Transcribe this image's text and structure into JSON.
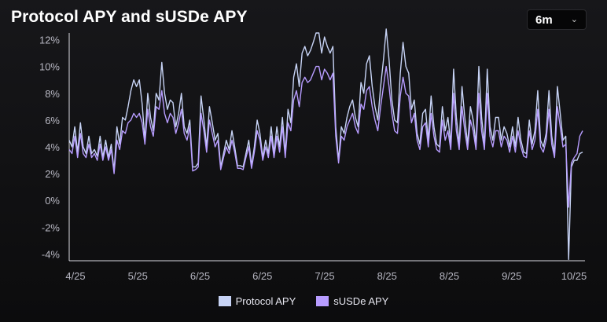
{
  "header": {
    "title": "Protocol APY and sUSDe APY",
    "range_value": "6m"
  },
  "legend": [
    {
      "label": "Protocol APY",
      "color": "#c7d3f5"
    },
    {
      "label": "sUSDe APY",
      "color": "#b79cff"
    }
  ],
  "chart_data": {
    "type": "line",
    "title": "Protocol APY and sUSDe APY",
    "xlabel": "",
    "ylabel": "",
    "x_ticks": [
      "4/25",
      "5/25",
      "6/25",
      "6/25",
      "7/25",
      "8/25",
      "8/25",
      "9/25",
      "10/25"
    ],
    "y_ticks": [
      "12%",
      "10%",
      "8%",
      "6%",
      "4%",
      "2%",
      "0%",
      "-2%",
      "-4%"
    ],
    "y_tick_values": [
      12,
      10,
      8,
      6,
      4,
      2,
      0,
      -2,
      -4
    ],
    "ylim": [
      -4.5,
      12.5
    ],
    "grid": false,
    "legend_position": "bottom-center",
    "series": [
      {
        "name": "Protocol APY",
        "color": "#c7d3f5",
        "values": [
          4.5,
          4.0,
          5.5,
          3.6,
          5.8,
          4.0,
          3.5,
          4.8,
          3.5,
          3.8,
          3.3,
          4.8,
          3.2,
          4.5,
          3.2,
          4.2,
          2.2,
          5.5,
          4.2,
          6.2,
          6.0,
          7.0,
          8.2,
          9.0,
          8.5,
          9.0,
          7.2,
          4.5,
          8.0,
          6.2,
          5.2,
          8.0,
          7.5,
          10.3,
          8.0,
          6.8,
          7.5,
          7.3,
          5.5,
          6.5,
          8.0,
          5.5,
          5.0,
          6.0,
          2.5,
          2.5,
          2.8,
          7.8,
          6.0,
          4.0,
          7.0,
          5.8,
          4.5,
          5.0,
          2.5,
          3.5,
          4.5,
          3.8,
          5.2,
          4.0,
          2.6,
          2.6,
          2.5,
          3.5,
          4.5,
          2.6,
          4.0,
          6.0,
          5.0,
          3.2,
          4.5,
          3.5,
          5.5,
          3.5,
          5.5,
          4.0,
          6.2,
          3.5,
          6.8,
          5.8,
          9.2,
          10.2,
          8.5,
          11.0,
          11.5,
          10.8,
          11.2,
          11.8,
          12.5,
          12.5,
          11.0,
          12.2,
          11.5,
          11.0,
          11.5,
          5.5,
          3.0,
          5.5,
          5.0,
          6.2,
          7.0,
          7.5,
          6.2,
          5.5,
          8.8,
          8.0,
          10.2,
          10.8,
          8.5,
          7.0,
          6.0,
          8.5,
          10.5,
          12.8,
          10.5,
          7.5,
          6.0,
          5.8,
          9.5,
          11.8,
          10.0,
          9.5,
          6.8,
          7.5,
          5.0,
          4.2,
          6.5,
          6.8,
          4.5,
          7.8,
          5.5,
          4.2,
          4.0,
          7.0,
          5.2,
          6.2,
          4.2,
          9.8,
          6.2,
          4.2,
          8.5,
          6.2,
          4.2,
          7.0,
          6.0,
          4.2,
          10.0,
          6.2,
          4.2,
          9.8,
          5.5,
          4.5,
          6.2,
          6.2,
          4.5,
          5.5,
          5.0,
          4.0,
          5.5,
          4.0,
          6.2,
          4.5,
          3.6,
          3.5,
          6.0,
          4.2,
          5.2,
          8.2,
          4.5,
          4.0,
          5.0,
          8.2,
          4.8,
          3.5,
          8.5,
          6.5,
          4.5,
          4.8,
          -4.4,
          2.5,
          3.0,
          3.0,
          3.5,
          3.6
        ]
      },
      {
        "name": "sUSDe APY",
        "color": "#b79cff",
        "values": [
          3.8,
          3.5,
          4.8,
          3.2,
          5.0,
          3.5,
          3.2,
          4.2,
          3.2,
          3.5,
          3.0,
          4.2,
          3.0,
          4.0,
          3.0,
          3.8,
          2.0,
          4.5,
          3.8,
          5.2,
          5.0,
          5.8,
          6.0,
          6.5,
          6.2,
          6.5,
          5.8,
          4.2,
          6.8,
          5.5,
          4.8,
          7.0,
          6.8,
          8.2,
          6.5,
          5.8,
          6.5,
          6.2,
          5.0,
          5.8,
          6.8,
          5.0,
          4.5,
          5.5,
          2.2,
          2.3,
          2.5,
          6.5,
          5.2,
          3.6,
          6.0,
          5.0,
          4.0,
          4.5,
          2.3,
          3.2,
          4.0,
          3.5,
          4.5,
          3.6,
          2.4,
          2.4,
          2.3,
          3.2,
          4.0,
          2.4,
          3.6,
          5.2,
          4.5,
          3.0,
          4.0,
          3.2,
          4.8,
          3.2,
          4.8,
          3.6,
          5.5,
          3.2,
          5.8,
          5.2,
          7.5,
          8.2,
          7.0,
          8.8,
          9.2,
          8.8,
          9.0,
          9.5,
          10.0,
          10.0,
          9.0,
          9.8,
          9.5,
          9.0,
          9.5,
          4.8,
          2.8,
          4.8,
          4.5,
          5.5,
          6.0,
          6.5,
          5.5,
          5.0,
          7.2,
          6.8,
          8.2,
          8.5,
          7.0,
          6.0,
          5.2,
          7.0,
          8.5,
          10.0,
          8.5,
          6.5,
          5.2,
          5.0,
          7.8,
          9.2,
          8.0,
          7.8,
          5.8,
          6.5,
          4.5,
          3.8,
          5.5,
          5.8,
          4.0,
          6.5,
          4.8,
          3.8,
          3.6,
          6.0,
          4.5,
          5.2,
          3.8,
          8.0,
          5.2,
          3.8,
          7.0,
          5.2,
          3.8,
          6.0,
          5.2,
          3.8,
          8.0,
          5.2,
          3.8,
          8.0,
          4.8,
          4.0,
          5.2,
          5.2,
          4.0,
          4.8,
          4.5,
          3.6,
          4.8,
          3.6,
          5.2,
          4.0,
          3.3,
          3.2,
          5.2,
          3.8,
          4.5,
          6.8,
          4.0,
          3.6,
          4.5,
          6.8,
          4.2,
          3.2,
          7.0,
          5.5,
          4.0,
          4.2,
          -0.5,
          2.8,
          3.2,
          3.5,
          4.8,
          5.2
        ]
      }
    ]
  }
}
